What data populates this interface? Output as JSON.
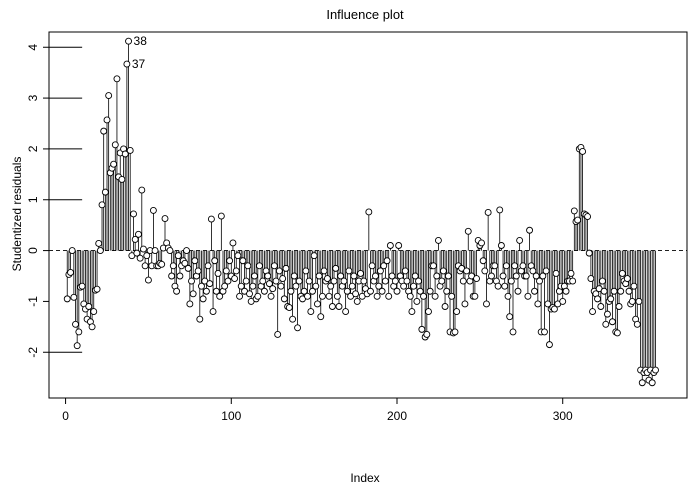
{
  "chart_data": {
    "type": "scatter",
    "title": "Influence plot",
    "xlabel": "Index",
    "ylabel": "Studentized residuals",
    "xlim": [
      -10,
      375
    ],
    "ylim": [
      -2.9,
      4.3
    ],
    "x_ticks": [
      0,
      100,
      200,
      300
    ],
    "y_ticks": [
      -2,
      -1,
      0,
      1,
      2,
      3,
      4
    ],
    "x_tick_labels": [
      "0",
      "100",
      "200",
      "300"
    ],
    "y_tick_labels": [
      "-2",
      "-1",
      "0",
      "1",
      "2",
      "3",
      "4"
    ],
    "reference_line": 0,
    "point_style": "open-circle-with-vertical-line-to-zero",
    "cutoff_segments": [
      -2,
      1,
      2,
      3,
      4
    ],
    "annotations": [
      {
        "label": "38",
        "x": 38,
        "y": 4.12
      },
      {
        "label": "37",
        "x": 37,
        "y": 3.67
      }
    ],
    "values": [
      -0.95,
      -0.47,
      -0.43,
      0.0,
      -0.92,
      -1.45,
      -1.87,
      -1.6,
      -0.72,
      -0.7,
      -1.05,
      -1.15,
      -1.35,
      -1.1,
      -1.4,
      -1.5,
      -1.2,
      -0.78,
      -0.76,
      0.14,
      0.0,
      0.9,
      2.35,
      1.15,
      2.57,
      3.05,
      1.53,
      1.62,
      1.7,
      2.08,
      3.38,
      1.45,
      1.92,
      1.4,
      2.0,
      1.9,
      3.67,
      4.12,
      1.97,
      -0.1,
      0.72,
      0.22,
      -0.05,
      0.32,
      -0.15,
      1.19,
      0.03,
      -0.3,
      -0.1,
      -0.58,
      0.0,
      -0.3,
      0.79,
      0.0,
      -0.3,
      -0.3,
      -0.25,
      -0.27,
      0.05,
      0.63,
      0.15,
      0.05,
      0.0,
      -0.5,
      -0.3,
      -0.7,
      -0.8,
      -0.1,
      -0.5,
      -0.3,
      -0.2,
      -0.25,
      0.0,
      -0.35,
      -1.05,
      -0.6,
      -0.85,
      -0.2,
      -0.5,
      -0.4,
      -1.35,
      -0.7,
      -0.95,
      -0.6,
      -0.8,
      -0.3,
      -0.65,
      0.62,
      -1.2,
      -0.2,
      -0.8,
      -0.45,
      -0.9,
      0.68,
      -0.8,
      -0.7,
      -0.4,
      -0.6,
      -0.2,
      -0.5,
      0.15,
      -0.55,
      -0.4,
      -0.1,
      -0.9,
      -0.7,
      -0.2,
      -0.8,
      -0.6,
      -0.3,
      -0.85,
      -1.0,
      -0.7,
      -0.5,
      -0.95,
      -0.9,
      -0.3,
      -0.7,
      -0.6,
      -0.8,
      -0.4,
      -0.5,
      -0.65,
      -0.9,
      -0.75,
      -0.3,
      -0.6,
      -1.65,
      -0.4,
      -0.7,
      -0.55,
      -0.95,
      -0.35,
      -1.1,
      -1.12,
      -0.8,
      -1.35,
      -0.5,
      -0.7,
      -1.52,
      -0.6,
      -0.9,
      -0.95,
      -0.8,
      -0.4,
      -0.9,
      -0.6,
      -1.2,
      -0.8,
      -0.1,
      -0.7,
      -1.05,
      -0.5,
      -1.3,
      -0.9,
      -0.4,
      -0.6,
      -0.55,
      -0.9,
      -0.7,
      -1.1,
      -0.6,
      -0.35,
      -0.9,
      -1.1,
      -0.5,
      -0.7,
      -0.6,
      -1.2,
      -0.8,
      -0.4,
      -0.9,
      -0.7,
      -0.5,
      -0.85,
      -1.0,
      -0.6,
      -0.45,
      -0.9,
      -0.6,
      -0.75,
      -0.85,
      0.76,
      -0.8,
      -0.3,
      -0.6,
      -0.5,
      -0.9,
      -0.7,
      -0.4,
      -0.8,
      -0.3,
      -0.6,
      -0.2,
      -0.9,
      0.1,
      -0.5,
      -0.7,
      -0.6,
      -0.8,
      0.1,
      -0.5,
      -0.6,
      -0.7,
      -0.4,
      -0.6,
      -0.8,
      -0.9,
      -1.2,
      -0.7,
      -0.5,
      -1.0,
      -0.6,
      -0.8,
      -1.55,
      -0.9,
      -1.7,
      -1.65,
      -1.2,
      -0.8,
      -0.3,
      -0.3,
      -0.9,
      -0.5,
      0.2,
      -0.7,
      -0.6,
      -0.4,
      -1.1,
      -0.8,
      -0.5,
      -1.6,
      -0.9,
      -1.62,
      -1.6,
      -1.2,
      -0.3,
      -0.4,
      -0.35,
      -0.6,
      -1.05,
      -0.4,
      0.38,
      -0.6,
      -0.5,
      -0.9,
      -0.9,
      -0.55,
      0.2,
      0.1,
      0.15,
      -0.2,
      -0.4,
      -1.05,
      0.75,
      -0.6,
      -0.5,
      -0.3,
      -0.3,
      -0.6,
      -0.7,
      0.8,
      0.1,
      -0.5,
      -0.7,
      -0.3,
      -0.9,
      -1.3,
      -0.6,
      -1.6,
      -0.3,
      -0.5,
      -0.8,
      0.2,
      -0.4,
      -0.3,
      -0.5,
      -0.5,
      -0.9,
      0.4,
      -0.3,
      -0.4,
      -0.8,
      -0.5,
      -1.05,
      -0.6,
      -1.6,
      -0.5,
      -1.6,
      -0.4,
      -1.05,
      -1.85,
      -1.15,
      -1.12,
      -1.15,
      -0.45,
      -1.05,
      -0.8,
      -0.7,
      -1.0,
      -0.7,
      -0.8,
      -0.6,
      -0.6,
      -0.45,
      -0.6,
      0.78,
      0.57,
      0.6,
      2.0,
      2.03,
      1.95,
      0.72,
      0.7,
      0.67,
      -0.05,
      -0.55,
      -1.2,
      -0.8,
      -0.85,
      -0.95,
      -0.75,
      -1.1,
      -0.6,
      -0.8,
      -1.45,
      -1.25,
      -1.0,
      -0.95,
      -1.4,
      -0.8,
      -1.6,
      -1.62,
      -1.1,
      -0.8,
      -0.45,
      -0.6,
      -0.65,
      -0.55,
      -0.8,
      -1.05,
      -1.0,
      -0.7,
      -1.35,
      -1.45,
      -1.0,
      -2.35,
      -2.6,
      -2.4,
      -2.35,
      -2.4,
      -2.55,
      -2.35,
      -2.6,
      -2.4,
      -2.35
    ]
  }
}
